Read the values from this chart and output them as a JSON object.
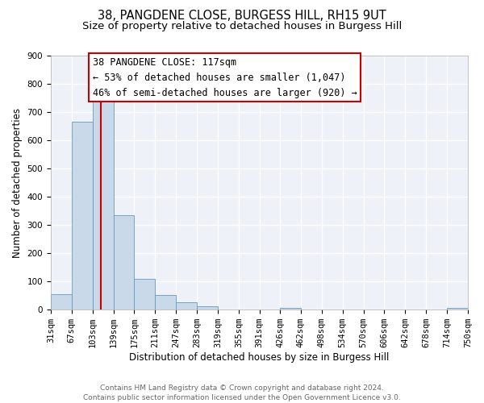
{
  "title": "38, PANGDENE CLOSE, BURGESS HILL, RH15 9UT",
  "subtitle": "Size of property relative to detached houses in Burgess Hill",
  "xlabel": "Distribution of detached houses by size in Burgess Hill",
  "ylabel": "Number of detached properties",
  "footer_line1": "Contains HM Land Registry data © Crown copyright and database right 2024.",
  "footer_line2": "Contains public sector information licensed under the Open Government Licence v3.0.",
  "annotation_title": "38 PANGDENE CLOSE: 117sqm",
  "annotation_line1": "← 53% of detached houses are smaller (1,047)",
  "annotation_line2": "46% of semi-detached houses are larger (920) →",
  "bin_edges": [
    31,
    67,
    103,
    139,
    175,
    211,
    247,
    283,
    319,
    355,
    391,
    426,
    462,
    498,
    534,
    570,
    606,
    642,
    678,
    714,
    750
  ],
  "bar_heights": [
    55,
    665,
    750,
    335,
    108,
    52,
    25,
    13,
    0,
    0,
    0,
    5,
    0,
    0,
    0,
    0,
    0,
    0,
    0,
    5
  ],
  "bar_color": "#c9d9ea",
  "bar_edge_color": "#6699bb",
  "vline_color": "#cc0000",
  "vline_x": 117,
  "annotation_box_edgecolor": "#cc0000",
  "ylim_max": 900,
  "yticks": [
    0,
    100,
    200,
    300,
    400,
    500,
    600,
    700,
    800,
    900
  ],
  "bg_color": "#eef2f8",
  "grid_color": "#ffffff",
  "title_fontsize": 10.5,
  "subtitle_fontsize": 9.5,
  "axis_label_fontsize": 8.5,
  "tick_fontsize": 7.5,
  "annotation_fontsize": 8.5,
  "footer_fontsize": 6.5
}
